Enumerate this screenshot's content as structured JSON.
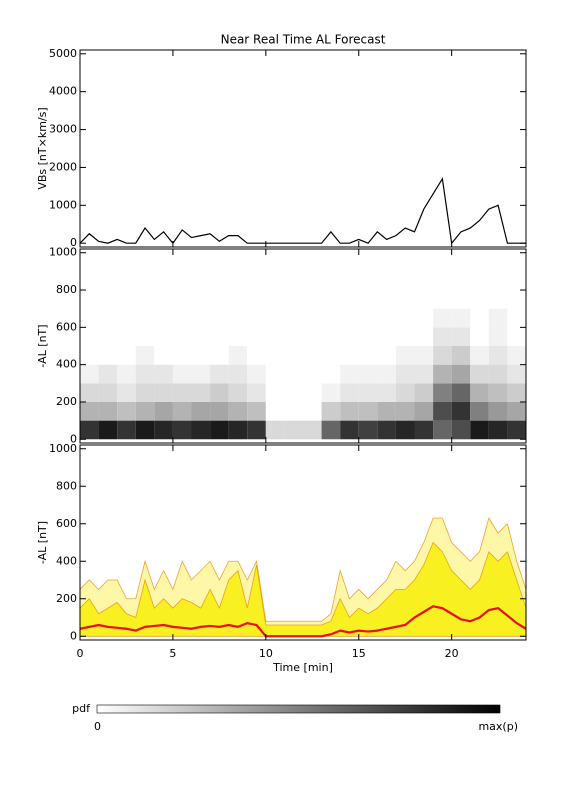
{
  "chart_data": [
    {
      "type": "line",
      "title": "Near Real Time AL Forecast",
      "y_label": "VBs [nT×km/s]",
      "xlim": [
        0,
        24
      ],
      "ylim": [
        -100,
        5100
      ],
      "yticks": [
        0,
        1000,
        2000,
        3000,
        4000,
        5000
      ],
      "x": [
        0,
        0.5,
        1,
        1.5,
        2,
        2.5,
        3,
        3.5,
        4,
        4.5,
        5,
        5.5,
        6,
        6.5,
        7,
        7.5,
        8,
        8.5,
        9,
        9.5,
        10,
        10.5,
        11,
        11.5,
        12,
        12.5,
        13,
        13.5,
        14,
        14.5,
        15,
        15.5,
        16,
        16.5,
        17,
        17.5,
        18,
        18.5,
        19,
        19.5,
        20,
        20.5,
        21,
        21.5,
        22,
        22.5,
        23,
        23.5,
        24
      ],
      "series": [
        {
          "color": "#000000",
          "values": [
            0,
            250,
            50,
            0,
            100,
            0,
            0,
            400,
            100,
            300,
            0,
            350,
            150,
            200,
            250,
            50,
            200,
            200,
            0,
            0,
            0,
            0,
            0,
            0,
            0,
            0,
            0,
            300,
            0,
            0,
            100,
            0,
            300,
            100,
            200,
            400,
            300,
            900,
            1300,
            1700,
            0,
            300,
            400,
            600,
            900,
            1000,
            0,
            0,
            0
          ]
        }
      ]
    },
    {
      "type": "heatmap",
      "y_label": "-AL [nT]",
      "xlim": [
        0,
        24
      ],
      "ylim": [
        -20,
        1020
      ],
      "yticks": [
        0,
        200,
        400,
        600,
        800,
        1000
      ],
      "colors": [
        "#ffffff",
        "#000000"
      ],
      "x_bins": [
        0,
        1,
        2,
        3,
        4,
        5,
        6,
        7,
        8,
        9,
        10,
        11,
        12,
        13,
        14,
        15,
        16,
        17,
        18,
        19,
        20,
        21,
        22,
        23,
        24
      ],
      "y_bins": [
        0,
        100,
        200,
        300,
        400,
        500,
        600,
        700
      ],
      "z": [
        [
          0.8,
          0.3,
          0.15,
          0.05,
          0,
          0,
          0
        ],
        [
          0.9,
          0.3,
          0.15,
          0.1,
          0,
          0,
          0
        ],
        [
          0.8,
          0.25,
          0.1,
          0.05,
          0,
          0,
          0
        ],
        [
          0.9,
          0.3,
          0.15,
          0.1,
          0.05,
          0,
          0
        ],
        [
          0.85,
          0.35,
          0.15,
          0.1,
          0,
          0,
          0
        ],
        [
          0.8,
          0.3,
          0.15,
          0.05,
          0,
          0,
          0
        ],
        [
          0.85,
          0.35,
          0.15,
          0.05,
          0,
          0,
          0
        ],
        [
          0.9,
          0.35,
          0.2,
          0.1,
          0,
          0,
          0
        ],
        [
          0.85,
          0.3,
          0.15,
          0.1,
          0.05,
          0,
          0
        ],
        [
          0.8,
          0.25,
          0.1,
          0.05,
          0,
          0,
          0
        ],
        [
          0.15,
          0,
          0,
          0,
          0,
          0,
          0
        ],
        [
          0.15,
          0,
          0,
          0,
          0,
          0,
          0
        ],
        [
          0.15,
          0,
          0,
          0,
          0,
          0,
          0
        ],
        [
          0.6,
          0.2,
          0.05,
          0,
          0,
          0,
          0
        ],
        [
          0.8,
          0.25,
          0.1,
          0.05,
          0,
          0,
          0
        ],
        [
          0.75,
          0.25,
          0.1,
          0.05,
          0,
          0,
          0
        ],
        [
          0.8,
          0.3,
          0.1,
          0.05,
          0,
          0,
          0
        ],
        [
          0.85,
          0.3,
          0.15,
          0.1,
          0.05,
          0,
          0
        ],
        [
          0.8,
          0.35,
          0.2,
          0.1,
          0.05,
          0,
          0
        ],
        [
          0.6,
          0.7,
          0.5,
          0.3,
          0.15,
          0.1,
          0.05
        ],
        [
          0.7,
          0.8,
          0.6,
          0.35,
          0.2,
          0.1,
          0.05
        ],
        [
          0.9,
          0.5,
          0.3,
          0.15,
          0.05,
          0,
          0
        ],
        [
          0.85,
          0.4,
          0.25,
          0.15,
          0.1,
          0.05,
          0.05
        ],
        [
          0.8,
          0.35,
          0.2,
          0.1,
          0.05,
          0,
          0
        ]
      ]
    },
    {
      "type": "band",
      "y_label": "-AL [nT]",
      "x_label": "Time [min]",
      "xlim": [
        0,
        24
      ],
      "ylim": [
        -20,
        1020
      ],
      "xticks": [
        0,
        5,
        10,
        15,
        20
      ],
      "yticks": [
        0,
        200,
        400,
        600,
        800,
        1000
      ],
      "x": [
        0,
        0.5,
        1,
        1.5,
        2,
        2.5,
        3,
        3.5,
        4,
        4.5,
        5,
        5.5,
        6,
        6.5,
        7,
        7.5,
        8,
        8.5,
        9,
        9.5,
        10,
        10.5,
        11,
        11.5,
        12,
        12.5,
        13,
        13.5,
        14,
        14.5,
        15,
        15.5,
        16,
        16.5,
        17,
        17.5,
        18,
        18.5,
        19,
        19.5,
        20,
        20.5,
        21,
        21.5,
        22,
        22.5,
        23,
        23.5,
        24
      ],
      "series": [
        {
          "style": "area",
          "color": "#fff7a8",
          "edge": "#f0a030",
          "values": [
            250,
            300,
            250,
            300,
            300,
            200,
            200,
            400,
            250,
            350,
            250,
            400,
            300,
            350,
            400,
            300,
            400,
            400,
            300,
            400,
            80,
            80,
            80,
            80,
            80,
            80,
            80,
            120,
            350,
            200,
            250,
            200,
            250,
            300,
            400,
            350,
            400,
            500,
            630,
            630,
            500,
            450,
            400,
            450,
            630,
            550,
            600,
            400,
            250
          ]
        },
        {
          "style": "area",
          "color": "#f8f020",
          "edge": "#e8a020",
          "values": [
            150,
            200,
            120,
            150,
            180,
            120,
            100,
            300,
            150,
            200,
            150,
            200,
            180,
            150,
            250,
            150,
            300,
            350,
            150,
            380,
            60,
            60,
            60,
            60,
            60,
            60,
            60,
            80,
            200,
            100,
            150,
            120,
            150,
            200,
            250,
            250,
            300,
            380,
            500,
            450,
            350,
            300,
            250,
            300,
            450,
            400,
            450,
            300,
            150
          ]
        },
        {
          "style": "line",
          "color": "#e81010",
          "values": [
            40,
            50,
            60,
            50,
            45,
            40,
            30,
            50,
            55,
            60,
            50,
            45,
            40,
            50,
            55,
            50,
            60,
            50,
            70,
            60,
            0,
            0,
            0,
            0,
            0,
            0,
            0,
            10,
            30,
            20,
            30,
            25,
            30,
            40,
            50,
            60,
            100,
            130,
            160,
            150,
            120,
            90,
            80,
            100,
            140,
            150,
            110,
            70,
            40
          ]
        }
      ]
    },
    {
      "type": "colorbar",
      "label": "pdf",
      "colors": [
        "#ffffff",
        "#000000"
      ],
      "tick_labels": [
        "0",
        "max(p)"
      ]
    }
  ]
}
